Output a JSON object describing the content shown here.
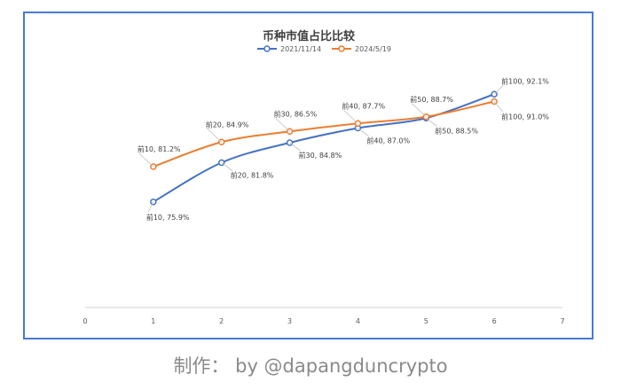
{
  "credit": "制作： by @dapangduncrypto",
  "chart_data": {
    "type": "line",
    "title": "币种市值占比比较",
    "xlabel": "",
    "ylabel": "",
    "xlim": [
      0,
      7
    ],
    "xticks": [
      "0",
      "1",
      "2",
      "3",
      "4",
      "5",
      "6",
      "7"
    ],
    "ylim": [
      60,
      100
    ],
    "grid": false,
    "legend_position": "top",
    "series": [
      {
        "name": "2021/11/14",
        "color": "#4472c4",
        "x": [
          1,
          2,
          3,
          4,
          5,
          6
        ],
        "values": [
          75.9,
          81.8,
          84.8,
          87.0,
          88.5,
          92.1
        ],
        "labels": [
          "前10, 75.9%",
          "前20, 81.8%",
          "前30, 84.8%",
          "前40, 87.0%",
          "前50, 88.5%",
          "前100, 92.1%"
        ]
      },
      {
        "name": "2024/5/19",
        "color": "#ed7d31",
        "x": [
          1,
          2,
          3,
          4,
          5,
          6
        ],
        "values": [
          81.2,
          84.9,
          86.5,
          87.7,
          88.7,
          91.0
        ],
        "labels": [
          "前10, 81.2%",
          "前20, 84.9%",
          "前30, 86.5%",
          "前40, 87.7%",
          "前50, 88.7%",
          "前100, 91.0%"
        ]
      }
    ]
  }
}
